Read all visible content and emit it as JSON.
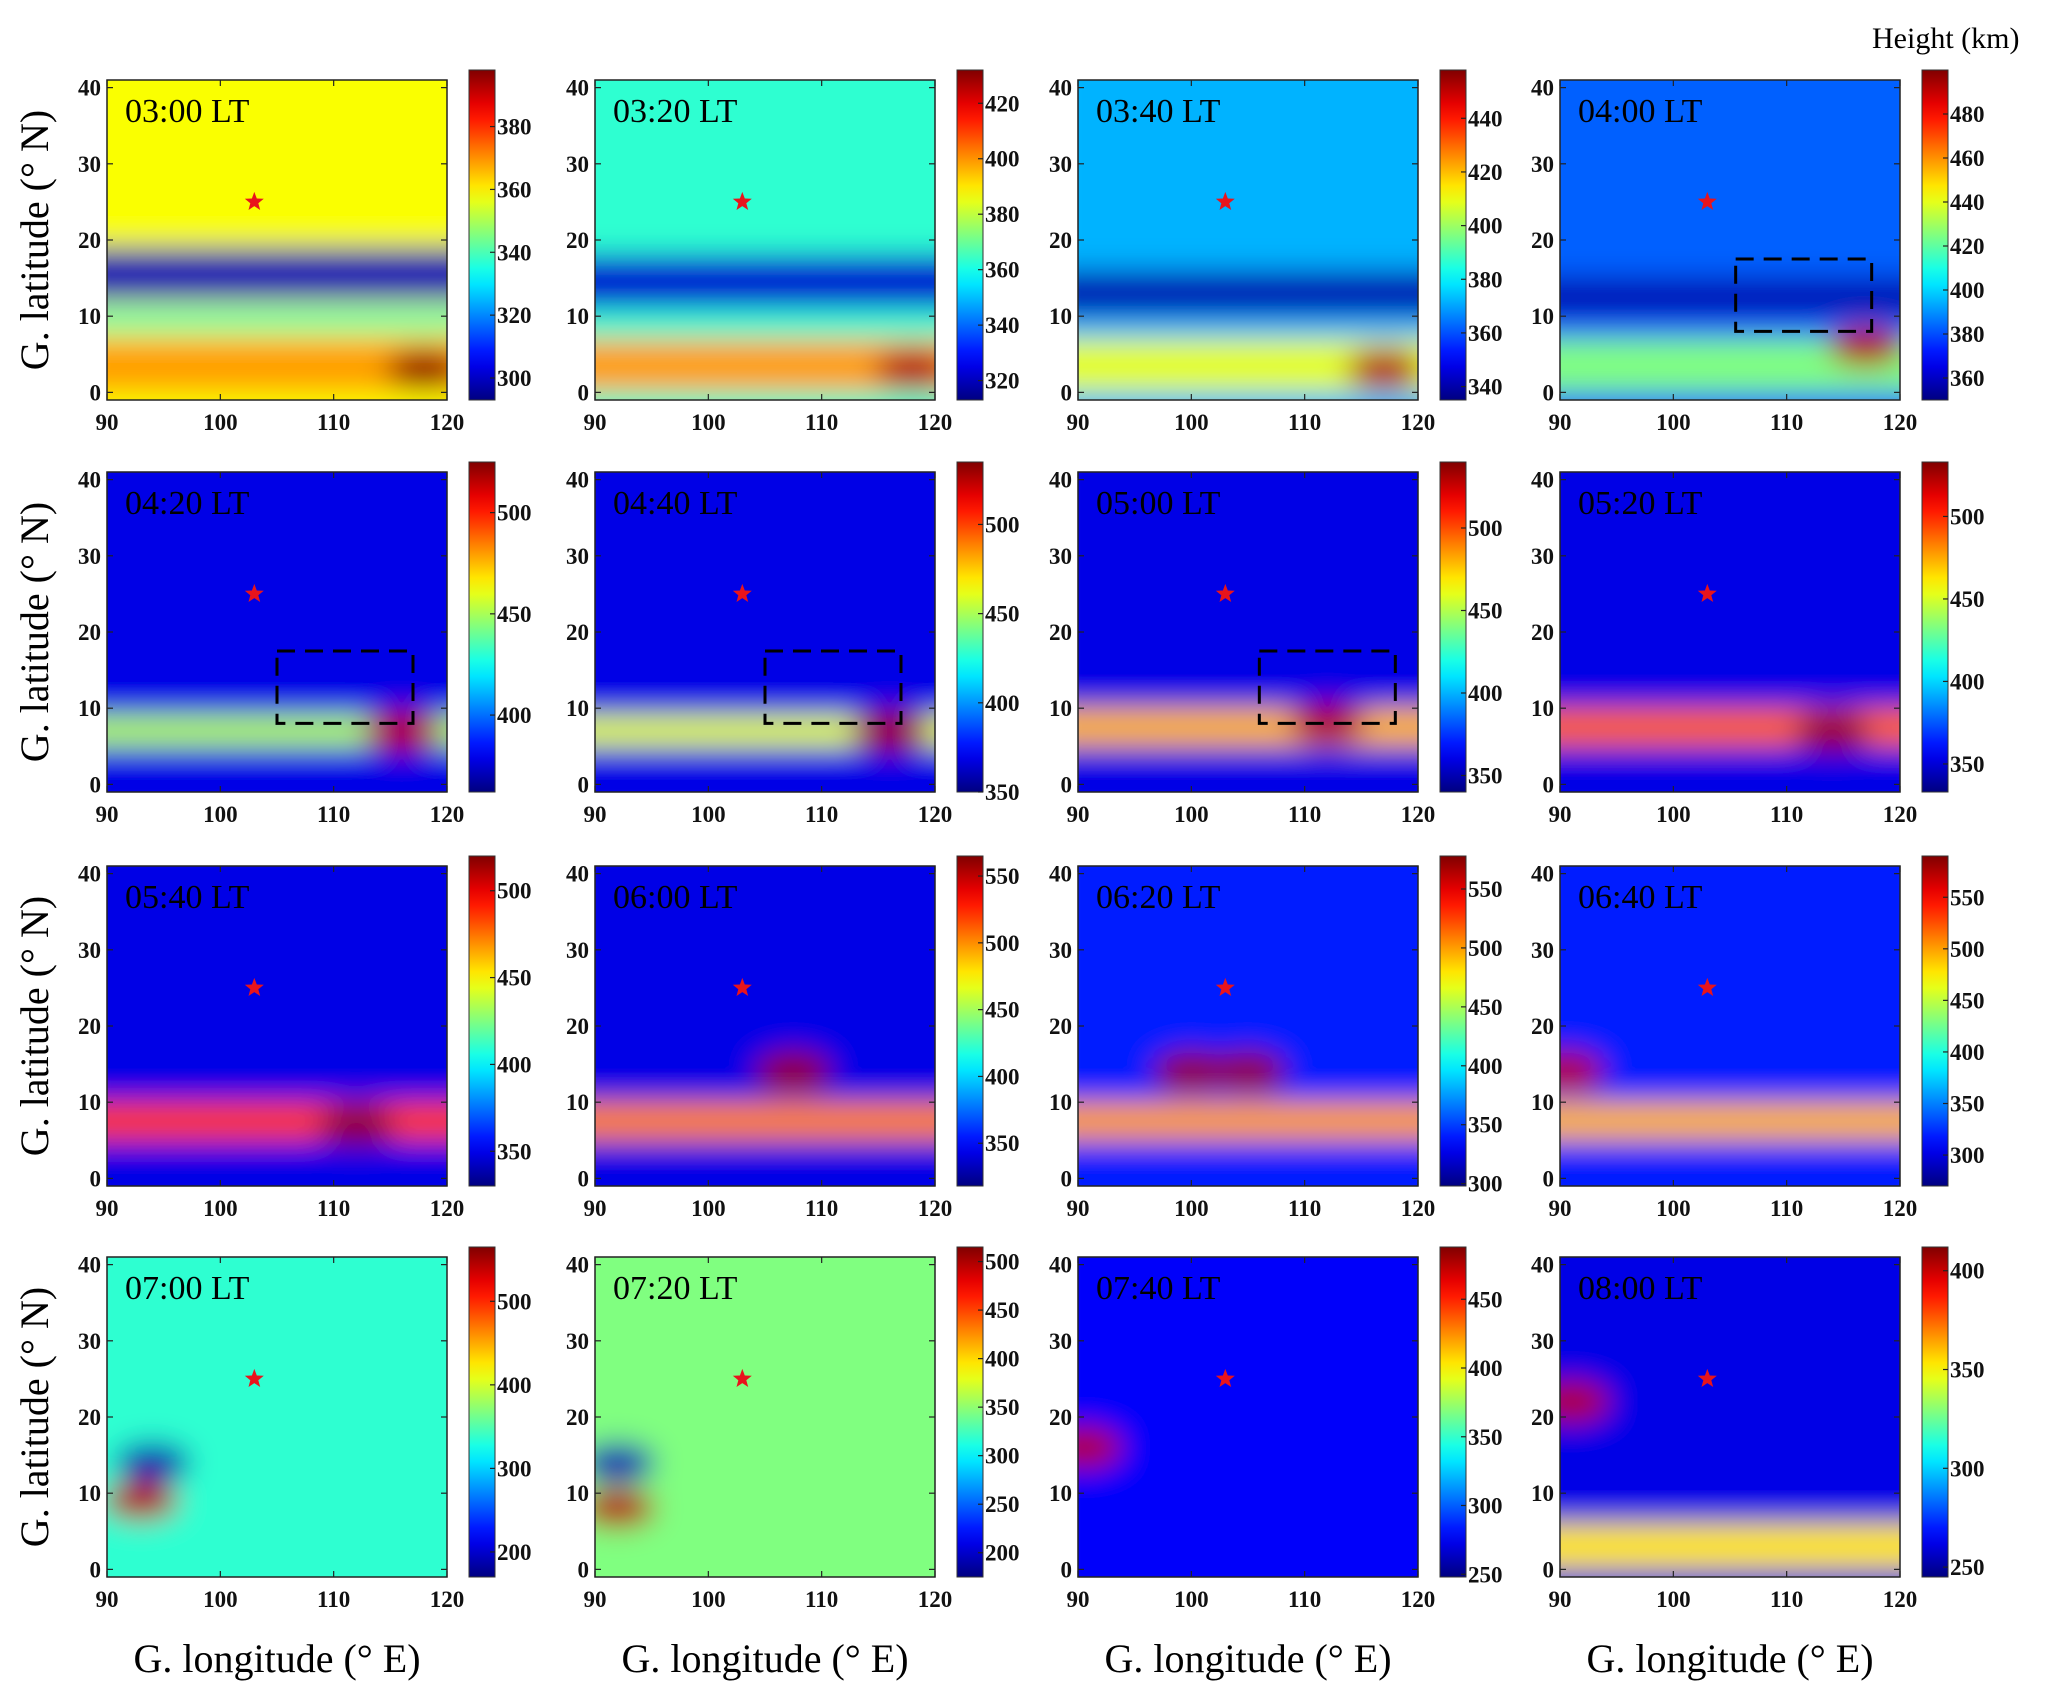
{
  "chart_data": {
    "type": "heatmap",
    "figure_title": "",
    "colorbar_title": "Height (km)",
    "xlabel": "G. longitude (° E)",
    "ylabel": "G. latitude (° N)",
    "xlim": [
      90,
      120
    ],
    "ylim": [
      -1,
      41
    ],
    "xticks": [
      90,
      100,
      110,
      120
    ],
    "yticks": [
      0,
      10,
      20,
      30,
      40
    ],
    "colormap": "jet",
    "marker": {
      "symbol": "star",
      "color": "#e8141c",
      "lon": 103,
      "lat": 25
    },
    "panels": [
      {
        "label": "03:00 LT",
        "clim": [
          293,
          398
        ],
        "cticks": [
          300,
          320,
          340,
          360,
          380
        ],
        "features": [
          {
            "kind": "band",
            "lat": [
              12,
              19
            ],
            "level": 0.05
          },
          {
            "kind": "band",
            "lat": [
              8,
              11
            ],
            "level": 0.45
          },
          {
            "kind": "band",
            "lat": [
              0,
              7
            ],
            "level": 0.72
          },
          {
            "kind": "blob",
            "lon": 118,
            "lat": 3,
            "level": 0.98
          },
          {
            "kind": "background",
            "level": 0.62
          }
        ]
      },
      {
        "label": "03:20 LT",
        "clim": [
          313,
          432
        ],
        "cticks": [
          320,
          340,
          360,
          380,
          400,
          420
        ],
        "features": [
          {
            "kind": "band",
            "lat": [
              11,
              18
            ],
            "level": 0.08
          },
          {
            "kind": "band",
            "lat": [
              0,
              7
            ],
            "level": 0.72
          },
          {
            "kind": "blob",
            "lon": 118,
            "lat": 3,
            "level": 0.95
          },
          {
            "kind": "background",
            "level": 0.42
          }
        ]
      },
      {
        "label": "03:40 LT",
        "clim": [
          335,
          458
        ],
        "cticks": [
          340,
          360,
          380,
          400,
          420,
          440
        ],
        "features": [
          {
            "kind": "band",
            "lat": [
              10,
              16
            ],
            "level": 0.05
          },
          {
            "kind": "band",
            "lat": [
              0,
              7
            ],
            "level": 0.6
          },
          {
            "kind": "blob",
            "lon": 117,
            "lat": 3,
            "level": 0.95
          },
          {
            "kind": "background",
            "level": 0.3
          }
        ]
      },
      {
        "label": "04:00 LT",
        "clim": [
          350,
          500
        ],
        "cticks": [
          360,
          380,
          400,
          420,
          440,
          460,
          480
        ],
        "box": {
          "lon": [
            105.5,
            117.5
          ],
          "lat": [
            8,
            17.5
          ]
        },
        "features": [
          {
            "kind": "band",
            "lat": [
              10,
              15
            ],
            "level": 0.05
          },
          {
            "kind": "band",
            "lat": [
              0,
              7
            ],
            "level": 0.5
          },
          {
            "kind": "blob",
            "lon": 117,
            "lat": 6,
            "level": 0.95
          },
          {
            "kind": "background",
            "level": 0.22
          }
        ]
      },
      {
        "label": "04:20 LT",
        "clim": [
          362,
          525
        ],
        "cticks": [
          400,
          450,
          500
        ],
        "box": {
          "lon": [
            105,
            117
          ],
          "lat": [
            8,
            17.5
          ]
        },
        "features": [
          {
            "kind": "band",
            "lat": [
              5,
              9
            ],
            "level": 0.55
          },
          {
            "kind": "blob",
            "lon": 116,
            "lat": 7,
            "level": 0.95
          },
          {
            "kind": "background",
            "level": 0.1
          }
        ]
      },
      {
        "label": "04:40 LT",
        "clim": [
          350,
          535
        ],
        "cticks": [
          350,
          400,
          450,
          500
        ],
        "box": {
          "lon": [
            105,
            117
          ],
          "lat": [
            8,
            17.5
          ]
        },
        "features": [
          {
            "kind": "band",
            "lat": [
              5,
              9
            ],
            "level": 0.6
          },
          {
            "kind": "blob",
            "lon": 116,
            "lat": 7,
            "level": 0.97
          },
          {
            "kind": "background",
            "level": 0.1
          }
        ]
      },
      {
        "label": "05:00 LT",
        "clim": [
          340,
          540
        ],
        "cticks": [
          350,
          400,
          450,
          500
        ],
        "box": {
          "lon": [
            106,
            118
          ],
          "lat": [
            8,
            17.5
          ]
        },
        "features": [
          {
            "kind": "band",
            "lat": [
              5,
              10
            ],
            "level": 0.7
          },
          {
            "kind": "blob",
            "lon": 112,
            "lat": 8,
            "level": 0.95
          },
          {
            "kind": "background",
            "level": 0.1
          }
        ]
      },
      {
        "label": "05:20 LT",
        "clim": [
          333,
          533
        ],
        "cticks": [
          350,
          400,
          450,
          500
        ],
        "features": [
          {
            "kind": "band",
            "lat": [
              5,
              10
            ],
            "level": 0.78
          },
          {
            "kind": "blob",
            "lon": 114,
            "lat": 7,
            "level": 0.97
          },
          {
            "kind": "background",
            "level": 0.1
          }
        ]
      },
      {
        "label": "05:40 LT",
        "clim": [
          330,
          520
        ],
        "cticks": [
          350,
          400,
          450,
          500
        ],
        "features": [
          {
            "kind": "band",
            "lat": [
              5,
              10
            ],
            "level": 0.82
          },
          {
            "kind": "blob",
            "lon": 112,
            "lat": 7,
            "level": 0.98
          },
          {
            "kind": "background",
            "level": 0.1
          }
        ]
      },
      {
        "label": "06:00 LT",
        "clim": [
          318,
          565
        ],
        "cticks": [
          350,
          400,
          450,
          500,
          550
        ],
        "features": [
          {
            "kind": "band",
            "lat": [
              5,
              10
            ],
            "level": 0.75
          },
          {
            "kind": "blob",
            "lon": 107.5,
            "lat": 14,
            "level": 0.98
          },
          {
            "kind": "background",
            "level": 0.1
          }
        ]
      },
      {
        "label": "06:20 LT",
        "clim": [
          298,
          578
        ],
        "cticks": [
          300,
          350,
          400,
          450,
          500,
          550
        ],
        "features": [
          {
            "kind": "band",
            "lat": [
              5,
              10
            ],
            "level": 0.72
          },
          {
            "kind": "blob",
            "lon": 100,
            "lat": 14,
            "level": 0.98
          },
          {
            "kind": "blob",
            "lon": 105,
            "lat": 14,
            "level": 0.98
          },
          {
            "kind": "background",
            "level": 0.15
          }
        ]
      },
      {
        "label": "06:40 LT",
        "clim": [
          270,
          590
        ],
        "cticks": [
          300,
          350,
          400,
          450,
          500,
          550
        ],
        "features": [
          {
            "kind": "band",
            "lat": [
              5,
              10
            ],
            "level": 0.7
          },
          {
            "kind": "blob",
            "lon": 90.5,
            "lat": 14,
            "level": 0.95
          },
          {
            "kind": "background",
            "level": 0.15
          }
        ]
      },
      {
        "label": "07:00 LT",
        "clim": [
          170,
          565
        ],
        "cticks": [
          200,
          300,
          400,
          500
        ],
        "features": [
          {
            "kind": "blob",
            "lon": 94,
            "lat": 14,
            "level": 0.05
          },
          {
            "kind": "blob",
            "lon": 93,
            "lat": 9,
            "level": 0.95
          },
          {
            "kind": "background",
            "level": 0.42
          }
        ]
      },
      {
        "label": "07:20 LT",
        "clim": [
          175,
          515
        ],
        "cticks": [
          200,
          250,
          300,
          350,
          400,
          450,
          500
        ],
        "features": [
          {
            "kind": "blob",
            "lon": 92,
            "lat": 14,
            "level": 0.05
          },
          {
            "kind": "blob",
            "lon": 92,
            "lat": 8,
            "level": 0.95
          },
          {
            "kind": "background",
            "level": 0.5
          }
        ]
      },
      {
        "label": "07:40 LT",
        "clim": [
          248,
          488
        ],
        "cticks": [
          250,
          300,
          350,
          400,
          450
        ],
        "features": [
          {
            "kind": "blob",
            "lon": 90.5,
            "lat": 16,
            "level": 0.95
          },
          {
            "kind": "background",
            "level": 0.12
          }
        ]
      },
      {
        "label": "08:00 LT",
        "clim": [
          245,
          412
        ],
        "cticks": [
          250,
          300,
          350,
          400
        ],
        "features": [
          {
            "kind": "blob",
            "lon": 91,
            "lat": 22,
            "level": 0.95
          },
          {
            "kind": "band",
            "lat": [
              0,
              6
            ],
            "level": 0.65
          },
          {
            "kind": "background",
            "level": 0.1
          }
        ]
      }
    ]
  }
}
